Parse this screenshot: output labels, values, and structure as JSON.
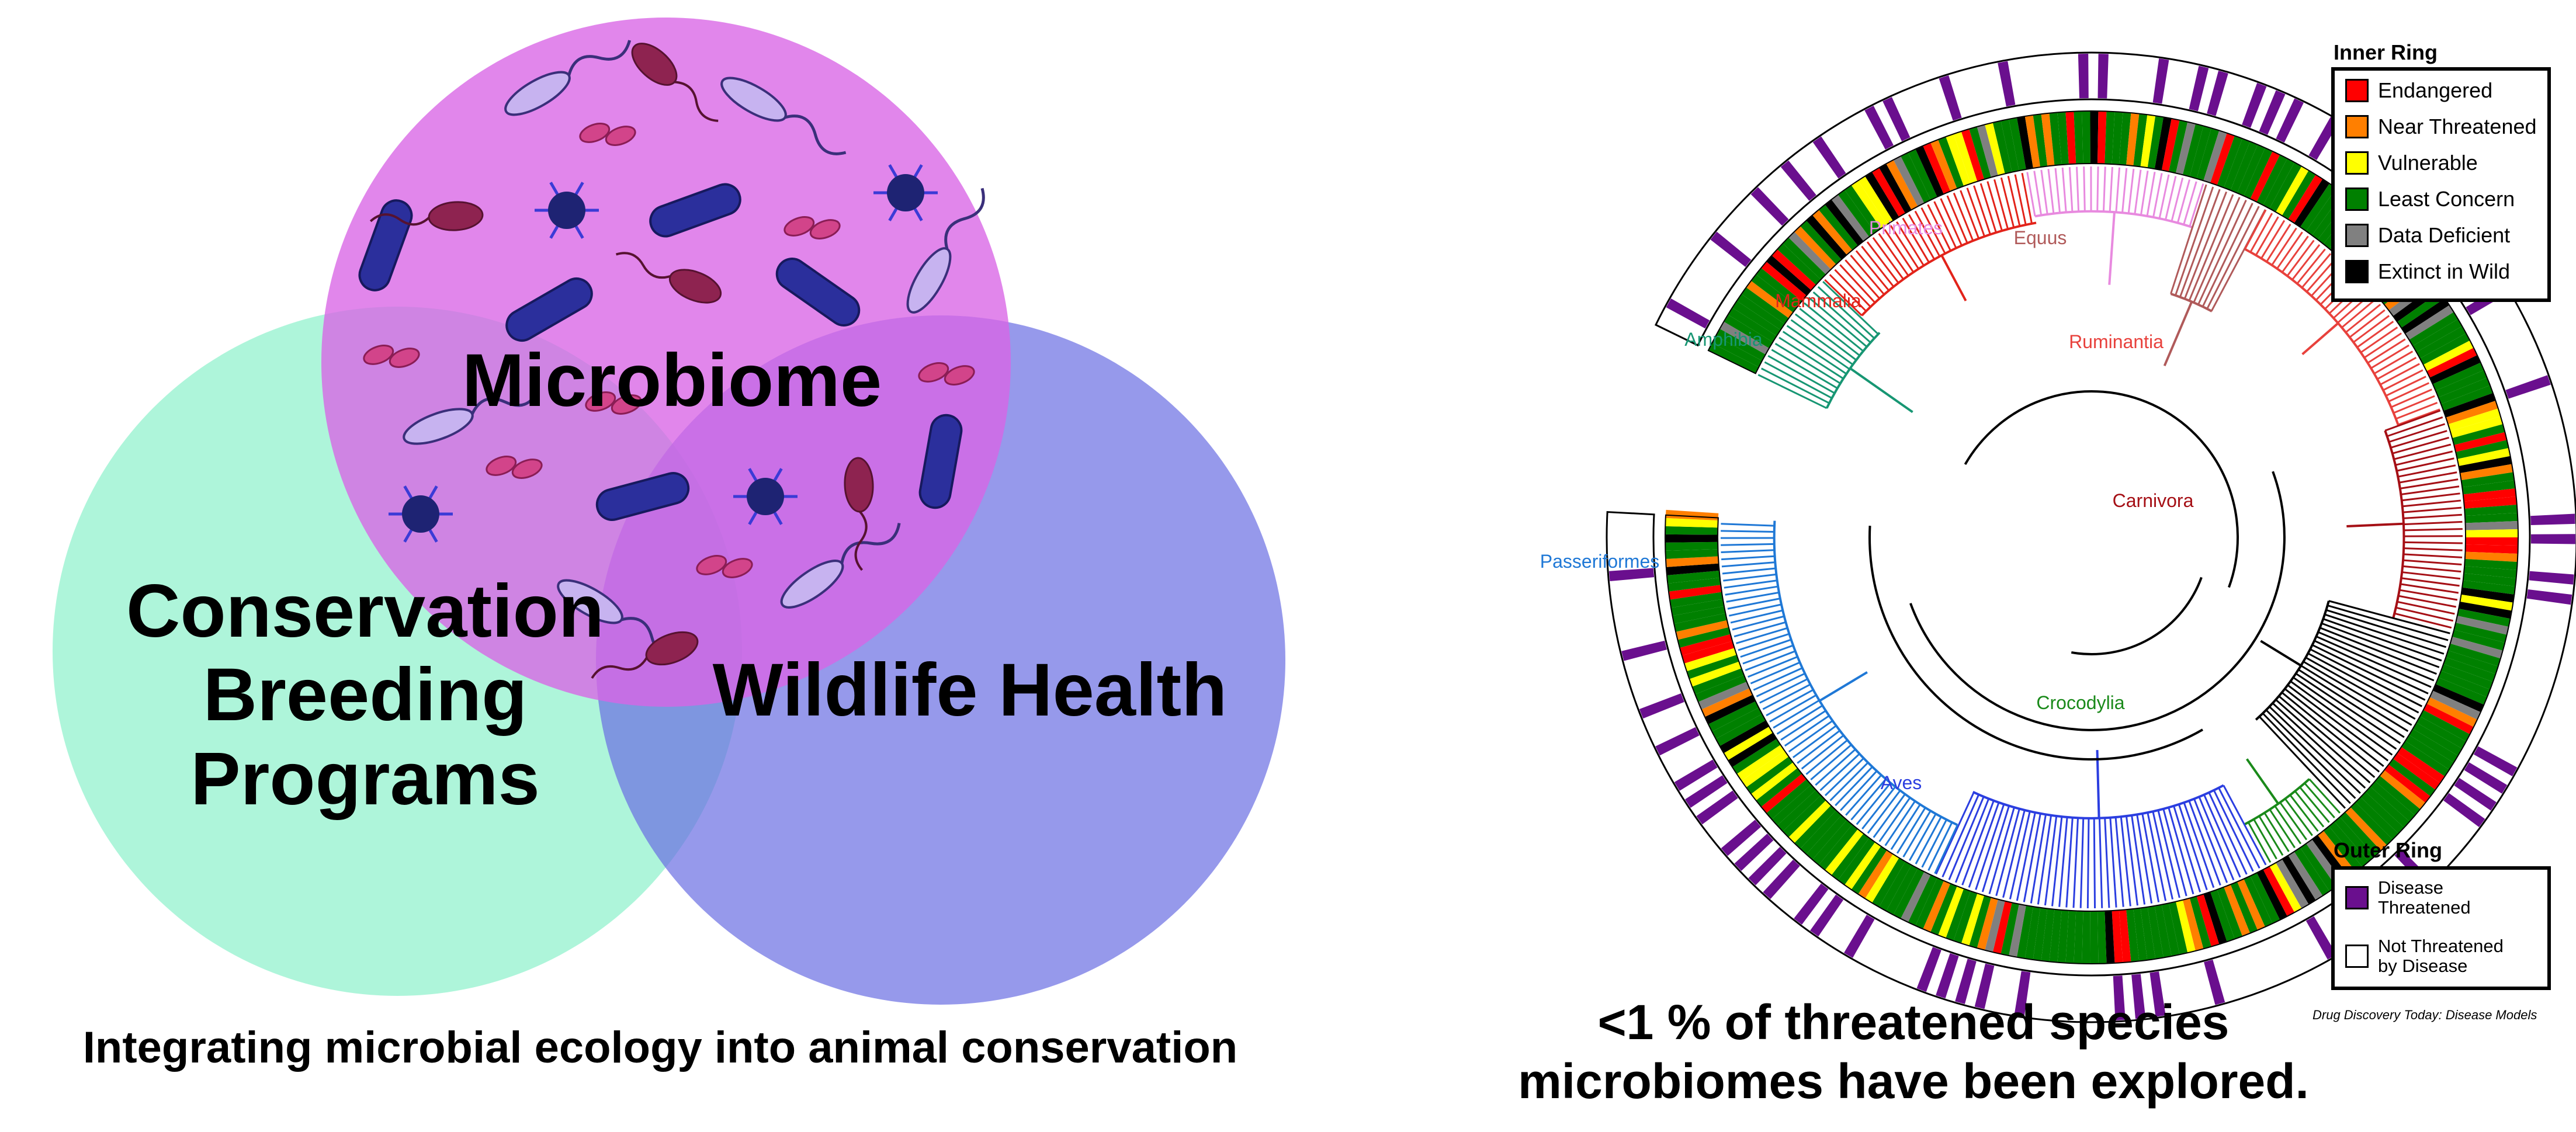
{
  "venn": {
    "microbiome": "Microbiome",
    "conservation_line1": "Conservation",
    "conservation_line2": "Breeding",
    "conservation_line3": "Programs",
    "wildlife": "Wildlife Health",
    "colors": {
      "microbiome": "#d964e6",
      "conservation": "#8ff1cc",
      "wildlife": "#6a6de3"
    }
  },
  "left_caption": "Integrating microbial ecology into animal conservation",
  "tree": {
    "clades": [
      {
        "name": "Primates",
        "color": "#e88adf"
      },
      {
        "name": "Equus",
        "color": "#b05a5a"
      },
      {
        "name": "Mammalia",
        "color": "#e2231a"
      },
      {
        "name": "Amphibia",
        "color": "#179673"
      },
      {
        "name": "Ruminantia",
        "color": "#e8413c"
      },
      {
        "name": "Carnivora",
        "color": "#a50f15"
      },
      {
        "name": "Passeriformes",
        "color": "#1f78d6"
      },
      {
        "name": "Crocodylia",
        "color": "#1a8a1a"
      },
      {
        "name": "Aves",
        "color": "#2b3ee0"
      }
    ]
  },
  "legend_inner": {
    "title": "Inner Ring",
    "items": [
      {
        "label": "Endangered",
        "color": "#ff0000"
      },
      {
        "label": "Near Threatened",
        "color": "#ff7f00"
      },
      {
        "label": "Vulnerable",
        "color": "#ffff00"
      },
      {
        "label": "Least Concern",
        "color": "#008000"
      },
      {
        "label": "Data Deficient",
        "color": "#808080"
      },
      {
        "label": "Extinct in Wild",
        "color": "#000000"
      }
    ]
  },
  "legend_outer": {
    "title": "Outer Ring",
    "items": [
      {
        "label_line1": "Disease",
        "label_line2": "Threatened",
        "color": "#6a0f8e"
      },
      {
        "label_line1": "Not Threatened",
        "label_line2": "by Disease",
        "color": "#ffffff"
      }
    ]
  },
  "credit": "Drug Discovery Today: Disease Models",
  "right_caption_line1": "<1 % of threatened species",
  "right_caption_line2": "microbiomes have been explored."
}
